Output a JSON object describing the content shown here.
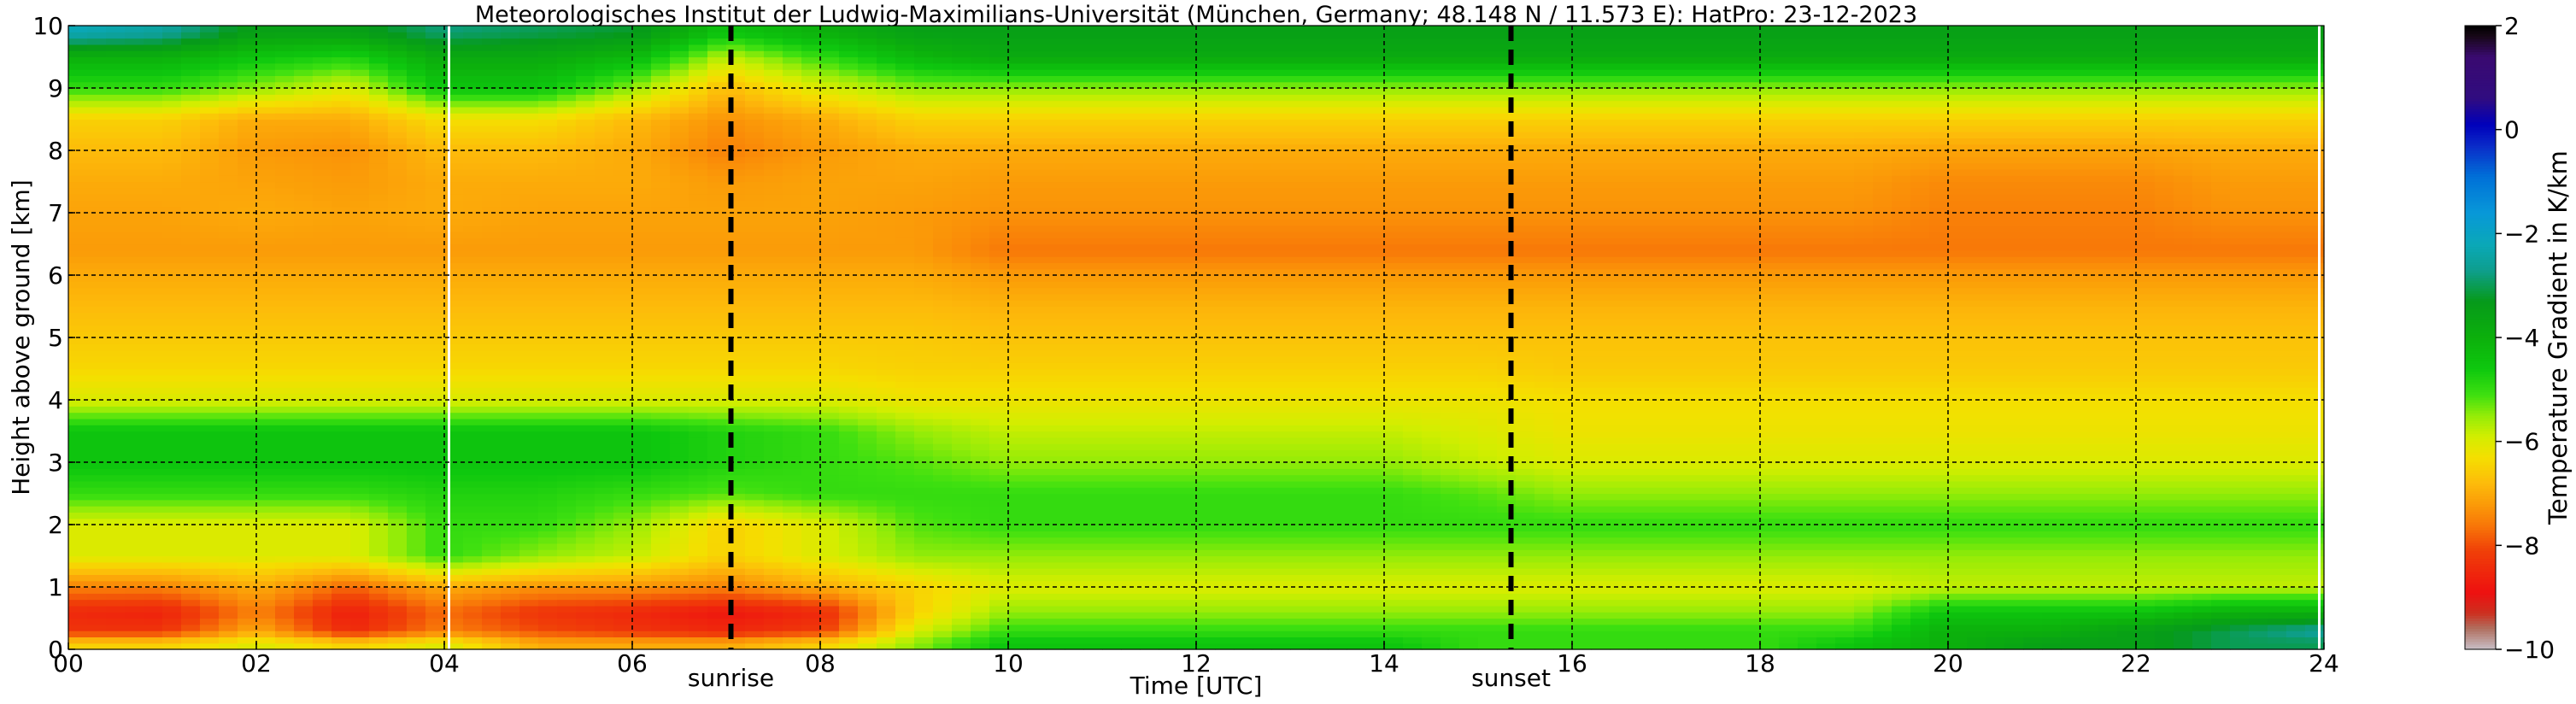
{
  "chart_data": {
    "type": "heatmap",
    "title": "Meteorologisches Institut der Ludwig-Maximilians-Universität (München, Germany; 48.148 N / 11.573 E):    HatPro: 23-12-2023",
    "xlabel": "Time [UTC]",
    "ylabel": "Height above ground [km]",
    "xlim": [
      0,
      24
    ],
    "ylim": [
      0,
      10
    ],
    "x_ticks": [
      0,
      2,
      4,
      6,
      8,
      10,
      12,
      14,
      16,
      18,
      20,
      22,
      24
    ],
    "x_tick_labels": [
      "00",
      "02",
      "04",
      "06",
      "08",
      "10",
      "12",
      "14",
      "16",
      "18",
      "20",
      "22",
      "24"
    ],
    "y_ticks": [
      0,
      1,
      2,
      3,
      4,
      5,
      6,
      7,
      8,
      9,
      10
    ],
    "y_tick_labels": [
      "0",
      "1",
      "2",
      "3",
      "4",
      "5",
      "6",
      "7",
      "8",
      "9",
      "10"
    ],
    "grid": true,
    "events": [
      {
        "label": "sunrise",
        "time": 7.05
      },
      {
        "label": "sunset",
        "time": 15.35
      }
    ],
    "data_gaps": [
      4.05,
      23.95
    ],
    "colorbar": {
      "label": "Temperature Gradient in K/km",
      "range": [
        -10,
        2
      ],
      "ticks": [
        -10,
        -8,
        -6,
        -4,
        -2,
        0,
        2
      ],
      "tick_labels": [
        "−10",
        "−8",
        "−6",
        "−4",
        "−2",
        "0",
        "2"
      ]
    },
    "heights_km": [
      0.1,
      0.3,
      0.6,
      1.0,
      1.5,
      2.0,
      2.5,
      3.0,
      3.5,
      4.0,
      4.5,
      5.0,
      5.5,
      6.0,
      6.4,
      7.0,
      7.5,
      8.0,
      8.5,
      9.0,
      9.5,
      9.9
    ],
    "times_utc": [
      0,
      1,
      2,
      3,
      4,
      5,
      6,
      7,
      8,
      9,
      10,
      11,
      12,
      13,
      14,
      15,
      16,
      17,
      18,
      19,
      20,
      21,
      22,
      23,
      24
    ],
    "gradient_K_per_km": [
      [
        -6.5,
        -6.5,
        -6.0,
        -6.5,
        -6.0,
        -7.0,
        -7.0,
        -7.0,
        -6.5,
        -5.5,
        -4.5,
        -4.5,
        -4.5,
        -4.5,
        -4.5,
        -5.0,
        -5.0,
        -5.0,
        -5.0,
        -4.5,
        -4.0,
        -3.5,
        -3.5,
        -3.0,
        -3.0
      ],
      [
        -8.3,
        -8.3,
        -7.0,
        -8.5,
        -7.5,
        -8.0,
        -8.3,
        -8.5,
        -8.2,
        -6.0,
        -5.0,
        -5.0,
        -5.0,
        -5.0,
        -5.0,
        -5.0,
        -5.0,
        -5.0,
        -5.0,
        -5.0,
        -4.0,
        -4.0,
        -3.5,
        -3.0,
        -2.5
      ],
      [
        -8.5,
        -8.6,
        -7.5,
        -8.7,
        -7.7,
        -8.3,
        -8.5,
        -8.8,
        -8.5,
        -6.5,
        -5.5,
        -5.5,
        -5.5,
        -5.5,
        -5.5,
        -5.5,
        -5.5,
        -5.5,
        -5.5,
        -5.5,
        -4.5,
        -4.5,
        -4.5,
        -4.0,
        -4.0
      ],
      [
        -7.5,
        -7.5,
        -7.0,
        -7.8,
        -7.0,
        -7.3,
        -7.3,
        -7.5,
        -7.0,
        -6.5,
        -6.0,
        -6.0,
        -6.0,
        -6.0,
        -6.0,
        -6.0,
        -6.0,
        -6.0,
        -6.0,
        -6.0,
        -5.8,
        -5.8,
        -5.8,
        -5.8,
        -5.8
      ],
      [
        -6.0,
        -6.0,
        -6.0,
        -6.0,
        -5.0,
        -5.5,
        -5.8,
        -6.5,
        -6.0,
        -5.5,
        -5.5,
        -5.5,
        -5.5,
        -5.5,
        -5.5,
        -5.5,
        -5.5,
        -5.5,
        -5.5,
        -5.5,
        -5.5,
        -5.5,
        -5.5,
        -5.5,
        -5.5
      ],
      [
        -6.0,
        -6.0,
        -6.0,
        -6.0,
        -5.0,
        -5.0,
        -5.5,
        -6.5,
        -6.0,
        -5.2,
        -5.0,
        -5.0,
        -5.0,
        -5.0,
        -5.0,
        -5.0,
        -5.0,
        -5.0,
        -5.0,
        -5.0,
        -5.0,
        -5.0,
        -5.0,
        -5.0,
        -5.0
      ],
      [
        -5.0,
        -5.0,
        -5.0,
        -5.0,
        -4.8,
        -4.8,
        -5.0,
        -5.2,
        -5.0,
        -5.0,
        -5.0,
        -5.0,
        -5.0,
        -5.0,
        -5.0,
        -5.2,
        -5.5,
        -5.5,
        -5.5,
        -5.5,
        -5.5,
        -5.5,
        -5.5,
        -5.5,
        -5.5
      ],
      [
        -4.5,
        -4.5,
        -4.5,
        -4.5,
        -4.5,
        -4.5,
        -4.5,
        -4.8,
        -5.0,
        -5.2,
        -5.5,
        -5.5,
        -5.5,
        -5.5,
        -5.5,
        -5.8,
        -6.0,
        -6.0,
        -6.0,
        -6.0,
        -6.0,
        -6.0,
        -6.0,
        -6.0,
        -6.0
      ],
      [
        -4.5,
        -4.5,
        -4.5,
        -4.5,
        -4.5,
        -4.5,
        -4.5,
        -4.8,
        -5.0,
        -5.5,
        -5.8,
        -5.8,
        -5.8,
        -5.8,
        -5.8,
        -6.0,
        -6.2,
        -6.2,
        -6.2,
        -6.2,
        -6.2,
        -6.2,
        -6.2,
        -6.2,
        -6.2
      ],
      [
        -6.0,
        -6.0,
        -6.0,
        -6.0,
        -6.0,
        -6.0,
        -6.0,
        -6.0,
        -6.0,
        -6.2,
        -6.2,
        -6.2,
        -6.2,
        -6.2,
        -6.2,
        -6.2,
        -6.3,
        -6.3,
        -6.3,
        -6.3,
        -6.3,
        -6.3,
        -6.3,
        -6.3,
        -6.3
      ],
      [
        -6.4,
        -6.4,
        -6.4,
        -6.4,
        -6.4,
        -6.4,
        -6.4,
        -6.4,
        -6.4,
        -6.5,
        -6.5,
        -6.5,
        -6.5,
        -6.5,
        -6.5,
        -6.5,
        -6.6,
        -6.6,
        -6.6,
        -6.6,
        -6.6,
        -6.6,
        -6.6,
        -6.6,
        -6.6
      ],
      [
        -6.6,
        -6.6,
        -6.6,
        -6.6,
        -6.6,
        -6.6,
        -6.6,
        -6.6,
        -6.6,
        -6.6,
        -6.7,
        -6.7,
        -6.7,
        -6.7,
        -6.7,
        -6.7,
        -6.7,
        -6.7,
        -6.7,
        -6.7,
        -6.7,
        -6.7,
        -6.7,
        -6.7,
        -6.7
      ],
      [
        -6.8,
        -6.8,
        -6.8,
        -6.8,
        -6.8,
        -6.8,
        -6.8,
        -6.8,
        -6.8,
        -6.8,
        -6.9,
        -6.9,
        -6.9,
        -6.9,
        -6.9,
        -6.9,
        -6.9,
        -6.9,
        -6.9,
        -6.9,
        -6.9,
        -6.9,
        -6.9,
        -6.9,
        -6.9
      ],
      [
        -7.0,
        -7.0,
        -7.0,
        -7.0,
        -7.0,
        -7.0,
        -7.0,
        -7.0,
        -7.0,
        -7.0,
        -7.2,
        -7.2,
        -7.2,
        -7.2,
        -7.2,
        -7.2,
        -7.2,
        -7.2,
        -7.2,
        -7.2,
        -7.2,
        -7.2,
        -7.2,
        -7.2,
        -7.2
      ],
      [
        -7.2,
        -7.2,
        -7.2,
        -7.2,
        -7.2,
        -7.2,
        -7.2,
        -7.2,
        -7.2,
        -7.2,
        -7.6,
        -7.6,
        -7.6,
        -7.6,
        -7.6,
        -7.6,
        -7.6,
        -7.6,
        -7.6,
        -7.6,
        -7.6,
        -7.6,
        -7.6,
        -7.6,
        -7.6
      ],
      [
        -7.1,
        -7.1,
        -7.0,
        -7.1,
        -7.0,
        -7.1,
        -7.1,
        -7.1,
        -7.1,
        -7.2,
        -7.3,
        -7.3,
        -7.3,
        -7.3,
        -7.3,
        -7.3,
        -7.3,
        -7.3,
        -7.3,
        -7.3,
        -7.5,
        -7.5,
        -7.5,
        -7.3,
        -7.3
      ],
      [
        -7.0,
        -7.0,
        -7.1,
        -7.2,
        -7.0,
        -7.0,
        -7.0,
        -7.2,
        -7.1,
        -7.1,
        -7.2,
        -7.2,
        -7.2,
        -7.2,
        -7.2,
        -7.2,
        -7.2,
        -7.2,
        -7.2,
        -7.2,
        -7.4,
        -7.4,
        -7.4,
        -7.2,
        -7.2
      ],
      [
        -6.8,
        -6.8,
        -7.2,
        -7.3,
        -6.8,
        -6.8,
        -7.0,
        -7.5,
        -7.2,
        -7.0,
        -7.0,
        -7.0,
        -7.0,
        -7.0,
        -7.0,
        -7.0,
        -7.0,
        -7.0,
        -7.0,
        -7.0,
        -7.1,
        -7.1,
        -7.1,
        -7.0,
        -7.0
      ],
      [
        -6.5,
        -6.5,
        -7.0,
        -7.0,
        -6.3,
        -6.3,
        -6.8,
        -7.3,
        -7.0,
        -6.5,
        -6.5,
        -6.5,
        -6.5,
        -6.5,
        -6.5,
        -6.5,
        -6.5,
        -6.5,
        -6.5,
        -6.5,
        -6.5,
        -6.5,
        -6.5,
        -6.5,
        -6.5
      ],
      [
        -5.0,
        -5.0,
        -5.5,
        -6.0,
        -4.5,
        -4.5,
        -5.5,
        -6.8,
        -6.0,
        -5.5,
        -5.5,
        -5.5,
        -5.5,
        -5.5,
        -5.5,
        -5.5,
        -5.5,
        -5.5,
        -5.5,
        -5.5,
        -5.5,
        -5.5,
        -5.5,
        -5.5,
        -5.5
      ],
      [
        -4.0,
        -4.0,
        -4.5,
        -4.8,
        -3.8,
        -3.8,
        -4.2,
        -5.8,
        -5.0,
        -4.2,
        -3.8,
        -3.8,
        -3.8,
        -3.8,
        -3.8,
        -3.8,
        -3.8,
        -3.8,
        -3.8,
        -3.8,
        -3.8,
        -3.8,
        -3.8,
        -3.8,
        -3.8
      ],
      [
        -2.2,
        -2.5,
        -3.5,
        -3.5,
        -2.8,
        -3.0,
        -3.2,
        -4.5,
        -4.0,
        -3.5,
        -3.5,
        -3.5,
        -3.5,
        -3.5,
        -3.5,
        -3.5,
        -3.5,
        -3.5,
        -3.5,
        -3.5,
        -3.5,
        -3.5,
        -3.5,
        -3.5,
        -3.5
      ]
    ]
  }
}
